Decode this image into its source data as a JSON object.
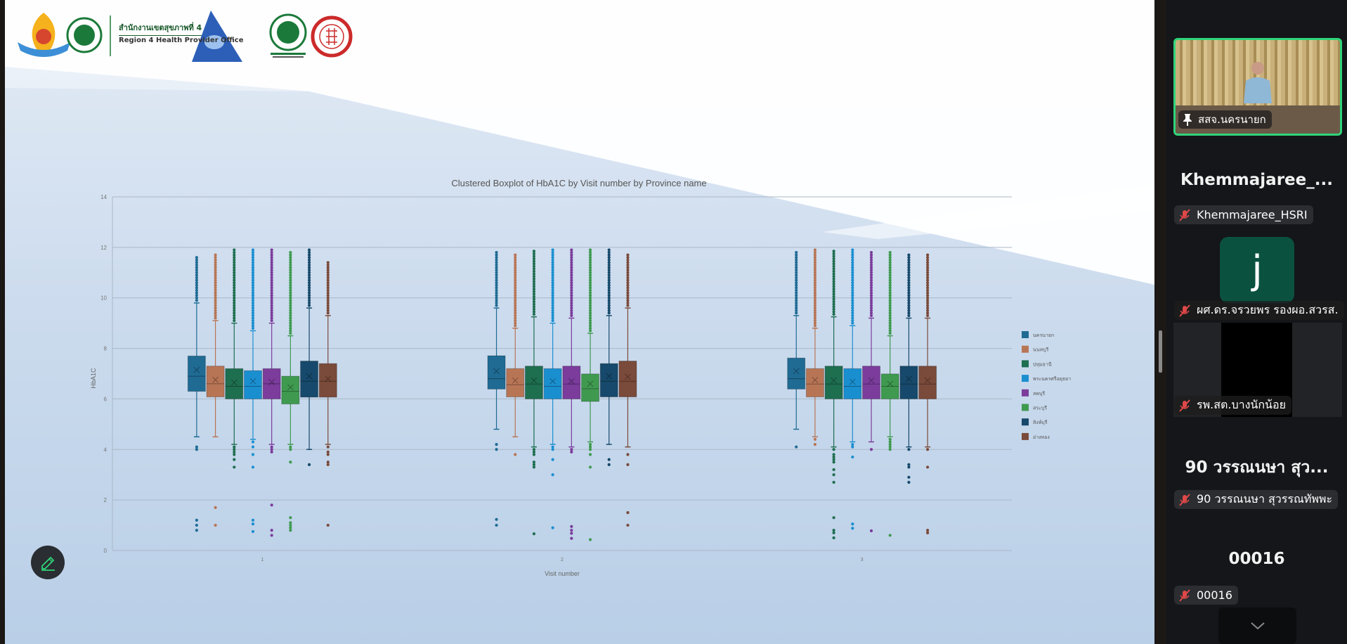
{
  "slide": {
    "org_line1": "สำนักงานเขตสุขภาพที่ 4",
    "org_line2": "Region 4 Health Provider Office",
    "logos": [
      "institute-emblem",
      "moph-seal",
      "triangle-emblem",
      "dept-medical-sciences-seal",
      "university-seal"
    ]
  },
  "chart_data": {
    "type": "boxplot",
    "title": "Clustered Boxplot of HbA1C by Visit number by Province name",
    "xlabel": "Visit number",
    "ylabel": "HbA1C",
    "ylim": [
      0,
      14
    ],
    "yticks": [
      "0",
      "2",
      "4",
      "6",
      "8",
      "10",
      "12",
      "14"
    ],
    "categories": [
      "1",
      "2",
      "3"
    ],
    "grid": true,
    "legend_position": "right",
    "series": [
      {
        "name": "นครนายก",
        "color": "#1f6b94"
      },
      {
        "name": "นนทบุรี",
        "color": "#b87555"
      },
      {
        "name": "ปทุมธานี",
        "color": "#1e6e50"
      },
      {
        "name": "พระนครศรีอยุธยา",
        "color": "#1a8fd0"
      },
      {
        "name": "ลพบุรี",
        "color": "#7b3c9c"
      },
      {
        "name": "สระบุรี",
        "color": "#3f9a50"
      },
      {
        "name": "สิงห์บุรี",
        "color": "#16496b"
      },
      {
        "name": "อ่างทอง",
        "color": "#7a4a3a"
      }
    ],
    "boxes": [
      [
        {
          "q1": 6.3,
          "median": 6.9,
          "q3": 7.7,
          "mean": 7.15,
          "whisker_low": 4.5,
          "whisker_high": 9.8,
          "high_outlier_range": [
            9.9,
            11.6
          ],
          "low_outliers": [
            4.1,
            4.0,
            1.2,
            1.0,
            0.8
          ]
        },
        {
          "q1": 6.08,
          "median": 6.6,
          "q3": 7.3,
          "mean": 6.76,
          "whisker_low": 4.5,
          "whisker_high": 9.1,
          "high_outlier_range": [
            9.2,
            11.7
          ],
          "low_outliers": [
            1.7,
            1.0
          ]
        },
        {
          "q1": 6.0,
          "median": 6.5,
          "q3": 7.2,
          "mean": 6.65,
          "whisker_low": 4.2,
          "whisker_high": 9.0,
          "high_outlier_range": [
            9.1,
            11.95
          ],
          "low_outliers": [
            4.1,
            4.0,
            3.9,
            3.8,
            3.6,
            3.3
          ]
        },
        {
          "q1": 6.0,
          "median": 6.5,
          "q3": 7.12,
          "mean": 6.7,
          "whisker_low": 4.4,
          "whisker_high": 8.7,
          "high_outlier_range": [
            8.8,
            11.9
          ],
          "low_outliers": [
            4.3,
            4.1,
            3.8,
            3.3,
            1.2,
            1.05,
            0.75
          ]
        },
        {
          "q1": 6.0,
          "median": 6.6,
          "q3": 7.2,
          "mean": 6.67,
          "whisker_low": 4.2,
          "whisker_high": 9.0,
          "high_outlier_range": [
            9.1,
            11.9
          ],
          "low_outliers": [
            4.1,
            4.0,
            3.9,
            1.8,
            0.8,
            0.6
          ]
        },
        {
          "q1": 5.8,
          "median": 6.3,
          "q3": 6.9,
          "mean": 6.46,
          "whisker_low": 4.2,
          "whisker_high": 8.5,
          "high_outlier_range": [
            8.6,
            11.8
          ],
          "low_outliers": [
            4.1,
            4.0,
            3.5,
            1.3,
            1.1,
            1.0,
            0.9,
            0.8
          ]
        },
        {
          "q1": 6.07,
          "median": 6.7,
          "q3": 7.5,
          "mean": 6.9,
          "whisker_low": 4.0,
          "whisker_high": 9.6,
          "high_outlier_range": [
            9.7,
            11.9
          ],
          "low_outliers": [
            3.4
          ]
        },
        {
          "q1": 6.07,
          "median": 6.7,
          "q3": 7.4,
          "mean": 6.8,
          "whisker_low": 4.2,
          "whisker_high": 9.3,
          "high_outlier_range": [
            9.4,
            11.4
          ],
          "low_outliers": [
            4.1,
            3.9,
            3.8,
            3.5,
            3.4,
            1.0
          ]
        }
      ],
      [
        {
          "q1": 6.39,
          "median": 6.8,
          "q3": 7.71,
          "mean": 7.1,
          "whisker_low": 4.8,
          "whisker_high": 9.6,
          "high_outlier_range": [
            9.7,
            11.8
          ],
          "low_outliers": [
            4.2,
            4.0,
            1.23,
            1.0
          ]
        },
        {
          "q1": 6.08,
          "median": 6.56,
          "q3": 7.2,
          "mean": 6.73,
          "whisker_low": 4.5,
          "whisker_high": 8.8,
          "high_outlier_range": [
            8.9,
            11.7
          ],
          "low_outliers": [
            3.8
          ]
        },
        {
          "q1": 6.0,
          "median": 6.59,
          "q3": 7.3,
          "mean": 6.73,
          "whisker_low": 4.1,
          "whisker_high": 9.25,
          "high_outlier_range": [
            9.35,
            11.9
          ],
          "low_outliers": [
            4.0,
            3.9,
            3.8,
            3.5,
            3.4,
            3.3,
            0.66
          ]
        },
        {
          "q1": 6.0,
          "median": 6.5,
          "q3": 7.2,
          "mean": 6.7,
          "whisker_low": 4.2,
          "whisker_high": 9.0,
          "high_outlier_range": [
            9.1,
            11.9
          ],
          "low_outliers": [
            4.1,
            4.0,
            3.6,
            3.0,
            0.9
          ]
        },
        {
          "q1": 6.0,
          "median": 6.59,
          "q3": 7.3,
          "mean": 6.7,
          "whisker_low": 4.1,
          "whisker_high": 9.2,
          "high_outlier_range": [
            9.3,
            11.9
          ],
          "low_outliers": [
            4.0,
            3.9,
            0.95,
            0.8,
            0.68,
            0.48
          ]
        },
        {
          "q1": 5.9,
          "median": 6.4,
          "q3": 6.99,
          "mean": 6.6,
          "whisker_low": 4.3,
          "whisker_high": 8.6,
          "high_outlier_range": [
            8.7,
            11.9
          ],
          "low_outliers": [
            4.2,
            4.1,
            4.0,
            3.8,
            3.3,
            0.43
          ]
        },
        {
          "q1": 6.08,
          "median": 6.7,
          "q3": 7.4,
          "mean": 6.9,
          "whisker_low": 4.2,
          "whisker_high": 9.3,
          "high_outlier_range": [
            9.4,
            11.9
          ],
          "low_outliers": [
            3.6,
            3.4
          ]
        },
        {
          "q1": 6.08,
          "median": 6.7,
          "q3": 7.5,
          "mean": 6.88,
          "whisker_low": 4.1,
          "whisker_high": 9.6,
          "high_outlier_range": [
            9.7,
            11.7
          ],
          "low_outliers": [
            3.8,
            3.4,
            1.5,
            1.0
          ]
        }
      ],
      [
        {
          "q1": 6.39,
          "median": 6.8,
          "q3": 7.62,
          "mean": 7.1,
          "whisker_low": 4.8,
          "whisker_high": 9.3,
          "high_outlier_range": [
            9.4,
            11.8
          ],
          "low_outliers": [
            4.1
          ]
        },
        {
          "q1": 6.08,
          "median": 6.59,
          "q3": 7.2,
          "mean": 6.75,
          "whisker_low": 4.5,
          "whisker_high": 8.8,
          "high_outlier_range": [
            8.9,
            11.9
          ],
          "low_outliers": [
            4.4,
            4.2
          ]
        },
        {
          "q1": 6.0,
          "median": 6.59,
          "q3": 7.3,
          "mean": 6.73,
          "whisker_low": 4.1,
          "whisker_high": 9.25,
          "high_outlier_range": [
            9.35,
            11.9
          ],
          "low_outliers": [
            4.0,
            3.8,
            3.7,
            3.6,
            3.5,
            3.2,
            3.0,
            2.7,
            1.3,
            0.8,
            0.7,
            0.5
          ]
        },
        {
          "q1": 6.0,
          "median": 6.5,
          "q3": 7.2,
          "mean": 6.68,
          "whisker_low": 4.3,
          "whisker_high": 8.9,
          "high_outlier_range": [
            9.0,
            11.9
          ],
          "low_outliers": [
            4.2,
            4.1,
            3.7,
            1.05,
            0.88
          ]
        },
        {
          "q1": 6.0,
          "median": 6.59,
          "q3": 7.3,
          "mean": 6.73,
          "whisker_low": 4.3,
          "whisker_high": 9.2,
          "high_outlier_range": [
            9.3,
            11.8
          ],
          "low_outliers": [
            4.0,
            0.78
          ]
        },
        {
          "q1": 6.0,
          "median": 6.5,
          "q3": 6.99,
          "mean": 6.6,
          "whisker_low": 4.5,
          "whisker_high": 8.5,
          "high_outlier_range": [
            8.6,
            11.8
          ],
          "low_outliers": [
            4.4,
            4.3,
            4.2,
            4.1,
            4.0,
            0.6
          ]
        },
        {
          "q1": 6.0,
          "median": 6.59,
          "q3": 7.3,
          "mean": 6.8,
          "whisker_low": 4.1,
          "whisker_high": 9.2,
          "high_outlier_range": [
            9.3,
            11.75
          ],
          "low_outliers": [
            4.0,
            3.4,
            3.3,
            2.9,
            2.7
          ]
        },
        {
          "q1": 6.0,
          "median": 6.59,
          "q3": 7.3,
          "mean": 6.73,
          "whisker_low": 4.1,
          "whisker_high": 9.2,
          "high_outlier_range": [
            9.3,
            11.7
          ],
          "low_outliers": [
            4.0,
            3.3,
            0.8,
            0.7
          ]
        }
      ]
    ]
  },
  "participants": [
    {
      "name": "สสจ.นครนายก",
      "pinned": true
    },
    {
      "heading": "Khemmajaree_...",
      "label": "Khemmajaree_HSRI"
    },
    {
      "avatar": "j",
      "label": "ผศ.ดร.จรวยพร รองผอ.สวรส."
    },
    {
      "label": "รพ.สต.บางนักน้อย"
    },
    {
      "heading": "90 วรรณนษา สุว...",
      "label": "90 วรรณนษา สุวรรณทัพพะ"
    },
    {
      "heading": "00016",
      "label": "00016"
    }
  ],
  "colors": {
    "active_speaker": "#2fd47a",
    "muted": "#e04848",
    "accent": "#2fd47a"
  }
}
